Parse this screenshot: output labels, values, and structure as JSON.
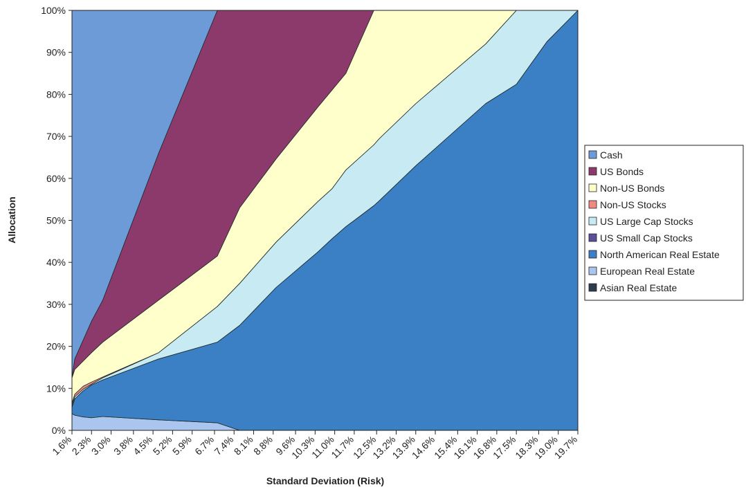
{
  "chart_data": {
    "type": "stacked_area",
    "x_label": "Standard Deviation (Risk)",
    "y_label": "Allocation",
    "x": [
      1.6,
      1.7,
      2.0,
      2.3,
      2.7,
      4.7,
      6.8,
      7.6,
      8.9,
      10.4,
      10.9,
      11.4,
      12.4,
      12.6,
      13.9,
      16.4,
      17.5,
      18.6,
      19.7
    ],
    "xlim": [
      1.6,
      19.7
    ],
    "ylim": [
      0,
      100
    ],
    "xticks": [
      {
        "value": 1.6,
        "label": "1.6%"
      },
      {
        "value": 2.3,
        "label": "2.3%"
      },
      {
        "value": 3.0,
        "label": "3.0%"
      },
      {
        "value": 3.8,
        "label": "3.8%"
      },
      {
        "value": 4.5,
        "label": "4.5%"
      },
      {
        "value": 5.2,
        "label": "5.2%"
      },
      {
        "value": 5.9,
        "label": "5.9%"
      },
      {
        "value": 6.7,
        "label": "6.7%"
      },
      {
        "value": 7.4,
        "label": "7.4%"
      },
      {
        "value": 8.1,
        "label": "8.1%"
      },
      {
        "value": 8.8,
        "label": "8.8%"
      },
      {
        "value": 9.6,
        "label": "9.6%"
      },
      {
        "value": 10.3,
        "label": "10.3%"
      },
      {
        "value": 11.0,
        "label": "11.0%"
      },
      {
        "value": 11.7,
        "label": "11.7%"
      },
      {
        "value": 12.5,
        "label": "12.5%"
      },
      {
        "value": 13.2,
        "label": "13.2%"
      },
      {
        "value": 13.9,
        "label": "13.9%"
      },
      {
        "value": 14.6,
        "label": "14.6%"
      },
      {
        "value": 15.4,
        "label": "15.4%"
      },
      {
        "value": 16.1,
        "label": "16.1%"
      },
      {
        "value": 16.8,
        "label": "16.8%"
      },
      {
        "value": 17.5,
        "label": "17.5%"
      },
      {
        "value": 18.3,
        "label": "18.3%"
      },
      {
        "value": 19.0,
        "label": "19.0%"
      },
      {
        "value": 19.7,
        "label": "19.7%"
      }
    ],
    "yticks": [
      {
        "value": 0,
        "label": "0%"
      },
      {
        "value": 10,
        "label": "10%"
      },
      {
        "value": 20,
        "label": "20%"
      },
      {
        "value": 30,
        "label": "30%"
      },
      {
        "value": 40,
        "label": "40%"
      },
      {
        "value": 50,
        "label": "50%"
      },
      {
        "value": 60,
        "label": "60%"
      },
      {
        "value": 70,
        "label": "70%"
      },
      {
        "value": 80,
        "label": "80%"
      },
      {
        "value": 90,
        "label": "90%"
      },
      {
        "value": 100,
        "label": "100%"
      }
    ],
    "legend_position": "right",
    "series": [
      {
        "name": "Asian Real Estate",
        "color": "#2d3b4c",
        "values": [
          0,
          0,
          0,
          0,
          0,
          0,
          0,
          0,
          0,
          0,
          0,
          0,
          0,
          0,
          0,
          0,
          0,
          0,
          0
        ]
      },
      {
        "name": "European Real Estate",
        "color": "#aac6ee",
        "values": [
          4,
          3.6,
          3.2,
          3,
          3.3,
          2.5,
          1.8,
          0,
          0,
          0,
          0,
          0,
          0,
          0,
          0,
          0,
          0,
          0,
          0
        ]
      },
      {
        "name": "North American Real Estate",
        "color": "#3b7fc4",
        "values": [
          1.5,
          3.9,
          6.2,
          7.8,
          8.7,
          14.5,
          19.2,
          25,
          34,
          42.5,
          45.6,
          48.5,
          53.5,
          54.7,
          63,
          77.8,
          82.4,
          92.6,
          100
        ]
      },
      {
        "name": "US Small Cap Stocks",
        "color": "#5c4f99",
        "values": [
          0,
          0,
          0,
          0,
          0,
          0,
          0,
          0,
          0,
          0,
          0,
          0,
          0,
          0,
          0,
          0,
          0,
          0,
          0
        ]
      },
      {
        "name": "US Large Cap Stocks",
        "color": "#c8eaf2",
        "values": [
          0.5,
          0.5,
          0.4,
          0.2,
          0.5,
          1.5,
          8.5,
          10,
          10.8,
          12,
          11.9,
          13.5,
          14.5,
          14.8,
          14.8,
          14.2,
          17.6,
          7.4,
          0
        ]
      },
      {
        "name": "Non-US Stocks",
        "color": "#f08a80",
        "values": [
          0.5,
          0.6,
          0.7,
          0.5,
          0.2,
          0,
          0,
          0,
          0,
          0,
          0,
          0,
          0,
          0,
          0,
          0,
          0,
          0,
          0
        ]
      },
      {
        "name": "Non-US Bonds",
        "color": "#ffffcc",
        "values": [
          6,
          5.9,
          6,
          7,
          8.3,
          12.5,
          12,
          18,
          19.8,
          22.5,
          23.5,
          23,
          32,
          30.5,
          22.2,
          8,
          0,
          0,
          0
        ]
      },
      {
        "name": "US Bonds",
        "color": "#8b3a6b",
        "values": [
          0.2,
          2.5,
          5,
          7.5,
          10,
          35,
          58.5,
          47,
          35.4,
          23,
          19,
          15,
          0,
          0,
          0,
          0,
          0,
          0,
          0
        ]
      },
      {
        "name": "Cash",
        "color": "#6d9bd8",
        "values": [
          87.3,
          83,
          78.5,
          74,
          69,
          34,
          0,
          0,
          0,
          0,
          0,
          0,
          0,
          0,
          0,
          0,
          0,
          0,
          0
        ]
      }
    ]
  }
}
